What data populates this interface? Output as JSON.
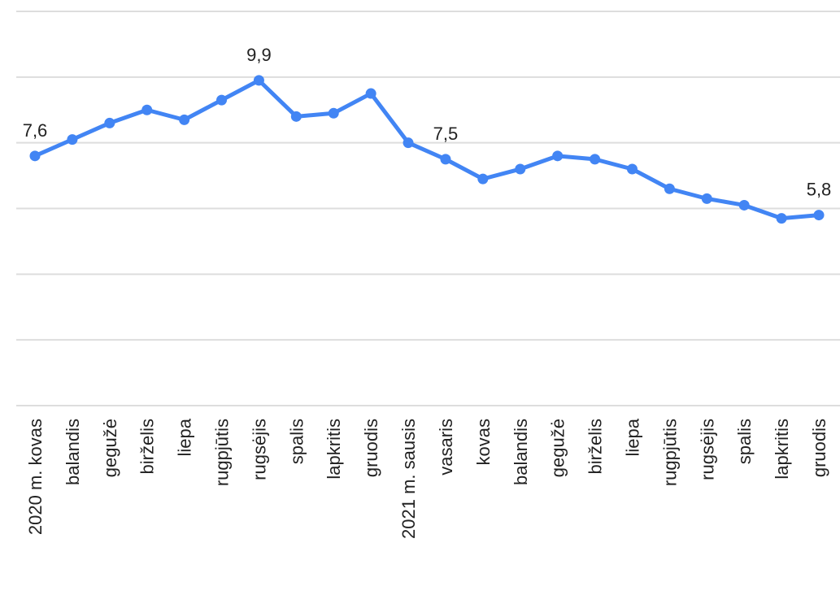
{
  "chart_data": {
    "type": "line",
    "categories": [
      "2020 m. kovas",
      "balandis",
      "gegužė",
      "birželis",
      "liepa",
      "rugpjūtis",
      "rugsėjis",
      "spalis",
      "lapkritis",
      "gruodis",
      "2021 m. sausis",
      "vasaris",
      "kovas",
      "balandis",
      "gegužė",
      "birželis",
      "liepa",
      "rugpjūtis",
      "rugsėjis",
      "spalis",
      "lapkritis",
      "gruodis"
    ],
    "series": [
      {
        "color": "#4285f4",
        "values": [
          7.6,
          8.1,
          8.6,
          9.0,
          8.7,
          9.3,
          9.9,
          8.8,
          8.9,
          9.5,
          8.0,
          7.5,
          6.9,
          7.2,
          7.6,
          7.5,
          7.2,
          6.6,
          6.3,
          6.1,
          5.7,
          5.8
        ],
        "value_labels": [
          "7,6",
          null,
          null,
          null,
          null,
          null,
          "9,9",
          null,
          null,
          null,
          null,
          "7,5",
          null,
          null,
          null,
          null,
          null,
          null,
          null,
          null,
          null,
          "5,8"
        ]
      }
    ],
    "ylim": [
      0,
      12
    ],
    "yticks": [
      0,
      2,
      4,
      6,
      8,
      10,
      12
    ],
    "grid": true
  }
}
